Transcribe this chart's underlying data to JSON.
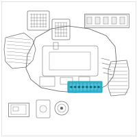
{
  "bg_color": "#ffffff",
  "border_color": "#cccccc",
  "line_color": "#666666",
  "highlight_color": "#1aa8c4",
  "highlight_fill": "#3dbcd4",
  "grid_color": "#0088aa"
}
